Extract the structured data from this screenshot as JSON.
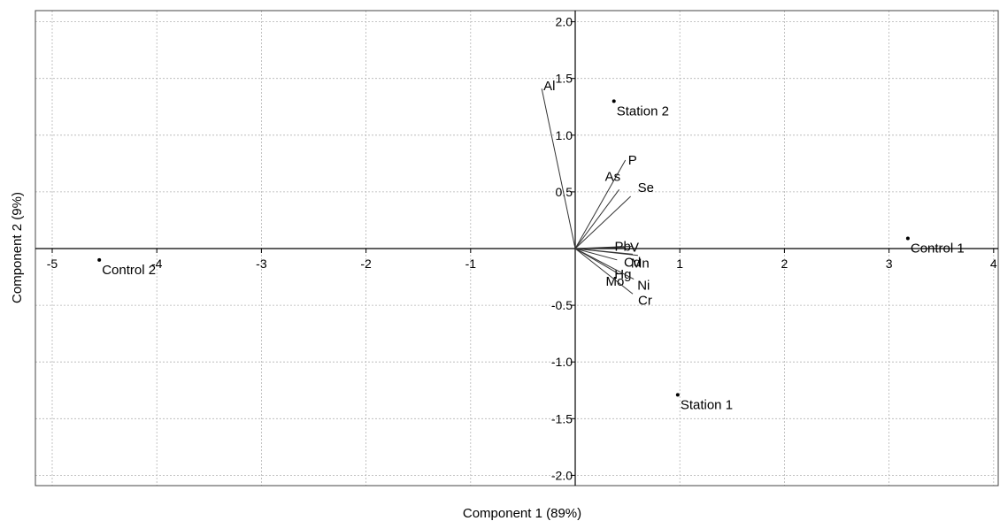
{
  "chart_data": {
    "type": "scatter",
    "subtype": "pca-biplot",
    "xlabel": "Component 1 (89%)",
    "ylabel": "Component 2 (9%)",
    "xlim": [
      -5.1,
      4.0
    ],
    "ylim": [
      -2.07,
      2.1
    ],
    "xticks": [
      -5,
      -4,
      -3,
      -2,
      -1,
      1,
      2,
      3,
      4
    ],
    "yticks": [
      2.0,
      1.5,
      1.0,
      0.5,
      -0.5,
      -1.0,
      -1.5,
      -2.0
    ],
    "xtick_labels": [
      "-5",
      "-4",
      "-3",
      "-2",
      "-1",
      "1",
      "2",
      "3",
      "4"
    ],
    "ytick_labels": [
      "2.0",
      "1.5",
      "1.0",
      "0.5",
      "-0.5",
      "-1.0",
      "-1.5",
      "-2.0"
    ],
    "grid": true,
    "points": [
      {
        "label": "Station 2",
        "x": 0.37,
        "y": 1.3
      },
      {
        "label": "Control 1",
        "x": 3.18,
        "y": 0.09
      },
      {
        "label": "Control 2",
        "x": -4.55,
        "y": -0.1
      },
      {
        "label": "Station 1",
        "x": 0.98,
        "y": -1.29
      }
    ],
    "loadings": [
      {
        "label": "Al",
        "x": -0.32,
        "y": 1.41
      },
      {
        "label": "P",
        "x": 0.48,
        "y": 0.78
      },
      {
        "label": "As",
        "x": 0.42,
        "y": 0.52
      },
      {
        "label": "Se",
        "x": 0.53,
        "y": 0.46
      },
      {
        "label": "Pb",
        "x": 0.47,
        "y": 0.01
      },
      {
        "label": "V",
        "x": 0.55,
        "y": 0.02
      },
      {
        "label": "Cd",
        "x": 0.55,
        "y": -0.05
      },
      {
        "label": "Mn",
        "x": 0.6,
        "y": -0.06
      },
      {
        "label": "Hg",
        "x": 0.4,
        "y": -0.1
      },
      {
        "label": "Mo",
        "x": 0.41,
        "y": -0.22
      },
      {
        "label": "Ni",
        "x": 0.56,
        "y": -0.27
      },
      {
        "label": "Cr",
        "x": 0.55,
        "y": -0.4
      }
    ]
  },
  "colors": {
    "axis": "#000000",
    "grid": "#b4b4b4",
    "frame": "#444444",
    "loading_line": "#333333",
    "point": "#000000"
  }
}
